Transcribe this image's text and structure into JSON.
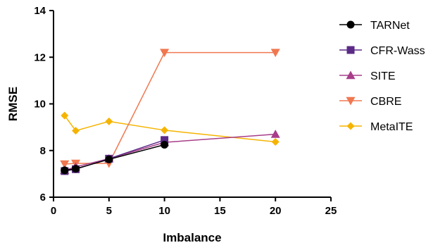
{
  "chart_data": {
    "type": "line",
    "title": "",
    "xlabel": "Imbalance",
    "ylabel": "RMSE",
    "xlim": [
      0,
      25
    ],
    "ylim": [
      6,
      14
    ],
    "xticks": [
      0,
      5,
      10,
      15,
      20,
      25
    ],
    "yticks": [
      6,
      8,
      10,
      12,
      14
    ],
    "grid": false,
    "legend_position": "right",
    "series": [
      {
        "name": "TARNet",
        "color": "#000000",
        "marker": "circle",
        "x": [
          1,
          2,
          5,
          10
        ],
        "y": [
          7.15,
          7.22,
          7.62,
          8.25
        ]
      },
      {
        "name": "CFR-Wass",
        "color": "#5b2a86",
        "marker": "square",
        "x": [
          1,
          2,
          5,
          10
        ],
        "y": [
          7.12,
          7.2,
          7.65,
          8.45
        ]
      },
      {
        "name": "SITE",
        "color": "#a83d8a",
        "marker": "triangle-up",
        "x": [
          1,
          2,
          5,
          10,
          20
        ],
        "y": [
          7.15,
          7.3,
          7.65,
          8.35,
          8.7
        ]
      },
      {
        "name": "CBRE",
        "color": "#f07850",
        "marker": "triangle-down",
        "x": [
          1,
          2,
          5,
          10,
          20
        ],
        "y": [
          7.42,
          7.45,
          7.45,
          12.2,
          12.2
        ]
      },
      {
        "name": "MetaITE",
        "color": "#f5b400",
        "marker": "diamond",
        "x": [
          1,
          2,
          5,
          10,
          20
        ],
        "y": [
          9.5,
          8.85,
          9.25,
          8.87,
          8.37
        ]
      }
    ]
  }
}
